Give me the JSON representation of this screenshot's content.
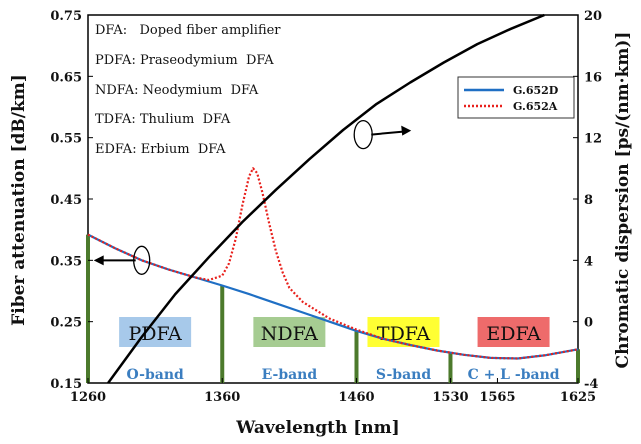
{
  "chart_data": {
    "type": "line",
    "xlabel": "Wavelength [nm]",
    "ylabel_left": "Fiber attenuation [dB/km]",
    "ylabel_right": "Chromatic dispersion [ps/(nm·km)]",
    "x_ticks": [
      1260,
      1360,
      1460,
      1530,
      1565,
      1625
    ],
    "y_left_ticks": [
      0.15,
      0.25,
      0.35,
      0.45,
      0.55,
      0.65,
      0.75
    ],
    "y_right_ticks": [
      -4,
      0,
      4,
      8,
      12,
      16,
      20
    ],
    "ylim_left": [
      0.15,
      0.75
    ],
    "ylim_right": [
      -4,
      20
    ],
    "xlim": [
      1260,
      1625
    ],
    "legend": {
      "placement": "top-right",
      "entries": [
        "G.652D",
        "G.652A"
      ]
    },
    "series": [
      {
        "name": "G.652D",
        "axis": "left",
        "color": "#1f6fc4",
        "style": "solid",
        "x": [
          1260,
          1280,
          1300,
          1320,
          1340,
          1360,
          1380,
          1400,
          1420,
          1440,
          1460,
          1480,
          1500,
          1520,
          1540,
          1560,
          1580,
          1600,
          1625
        ],
        "y": [
          0.392,
          0.37,
          0.35,
          0.335,
          0.322,
          0.309,
          0.295,
          0.28,
          0.265,
          0.25,
          0.235,
          0.222,
          0.212,
          0.203,
          0.196,
          0.191,
          0.19,
          0.195,
          0.205
        ]
      },
      {
        "name": "G.652A",
        "axis": "left",
        "color": "#e8201c",
        "style": "dotted",
        "x": [
          1260,
          1280,
          1300,
          1320,
          1340,
          1350,
          1360,
          1365,
          1370,
          1375,
          1380,
          1383,
          1386,
          1390,
          1395,
          1400,
          1405,
          1410,
          1420,
          1440,
          1460,
          1480,
          1500,
          1520,
          1540,
          1560,
          1580,
          1600,
          1625
        ],
        "y": [
          0.392,
          0.37,
          0.35,
          0.335,
          0.322,
          0.318,
          0.325,
          0.345,
          0.385,
          0.44,
          0.487,
          0.5,
          0.492,
          0.46,
          0.41,
          0.365,
          0.33,
          0.305,
          0.282,
          0.255,
          0.237,
          0.222,
          0.212,
          0.203,
          0.196,
          0.191,
          0.19,
          0.195,
          0.205
        ]
      },
      {
        "name": "Chromatic dispersion",
        "axis": "right",
        "color": "#000000",
        "style": "solid",
        "x": [
          1275,
          1300,
          1325,
          1350,
          1375,
          1400,
          1425,
          1450,
          1475,
          1500,
          1525,
          1550,
          1575,
          1600
        ],
        "y": [
          -4,
          -1,
          1.8,
          4.2,
          6.5,
          8.6,
          10.6,
          12.5,
          14.2,
          15.6,
          16.9,
          18.1,
          19.1,
          20
        ]
      }
    ],
    "boundaries_nm": [
      1260,
      1360,
      1460,
      1530,
      1625
    ],
    "bands": [
      {
        "label": "O-band",
        "x": 1310
      },
      {
        "label": "E-band",
        "x": 1410
      },
      {
        "label": "S-band",
        "x": 1495
      },
      {
        "label": "C + L -band",
        "x": 1577
      }
    ],
    "amplifiers": [
      {
        "label": "PDFA",
        "x": 1310,
        "color": "#a7c9ea"
      },
      {
        "label": "NDFA",
        "x": 1410,
        "color": "#a6cc92"
      },
      {
        "label": "TDFA",
        "x": 1495,
        "color": "#ffff33"
      },
      {
        "label": "EDFA",
        "x": 1577,
        "color": "#ee6b6b"
      }
    ],
    "annotations": [
      "DFA:   Doped fiber amplifier",
      "PDFA: Praseodymium  DFA",
      "NDFA: Neodymium  DFA",
      "TDFA: Thulium  DFA",
      "EDFA: Erbium  DFA"
    ]
  }
}
